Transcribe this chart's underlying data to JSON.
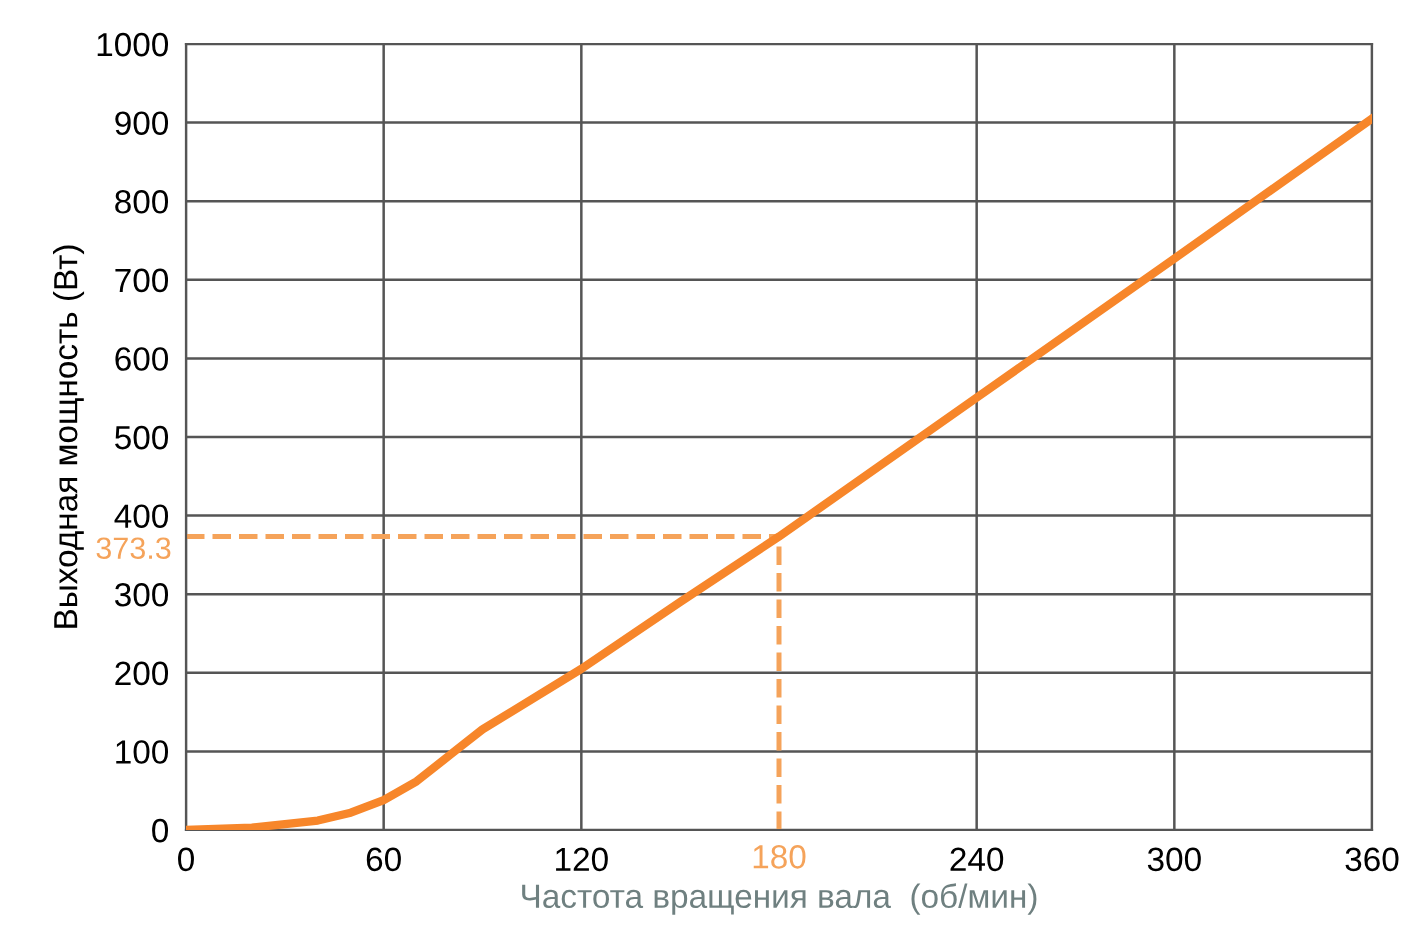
{
  "chart_data": {
    "type": "line",
    "xlabel": "Частота вращения вала  (об/мин)",
    "ylabel": "Выходная мощность (Вт)",
    "xlim": [
      0,
      360
    ],
    "ylim": [
      0,
      1000
    ],
    "xticks": [
      0,
      60,
      120,
      240,
      300,
      360
    ],
    "yticks": [
      0,
      100,
      200,
      300,
      400,
      500,
      600,
      700,
      800,
      900,
      1000
    ],
    "grid": true,
    "line_style": "solid",
    "marker": "none",
    "series": [
      {
        "color": "#f7862a",
        "x": [
          0,
          20,
          40,
          50,
          60,
          70,
          80,
          90,
          120,
          150,
          180,
          240,
          300,
          360
        ],
        "values": [
          0,
          3,
          12,
          22,
          38,
          62,
          95,
          128,
          205,
          290,
          373.3,
          550,
          727,
          905
        ]
      }
    ],
    "ref_lines": [
      {
        "axis": "y",
        "value": 373.3,
        "label": "373.3",
        "color": "#f5a35a",
        "line_style": "dashed"
      },
      {
        "axis": "x",
        "value": 180,
        "label": "180",
        "color": "#f5a35a",
        "line_style": "dashed"
      }
    ]
  }
}
